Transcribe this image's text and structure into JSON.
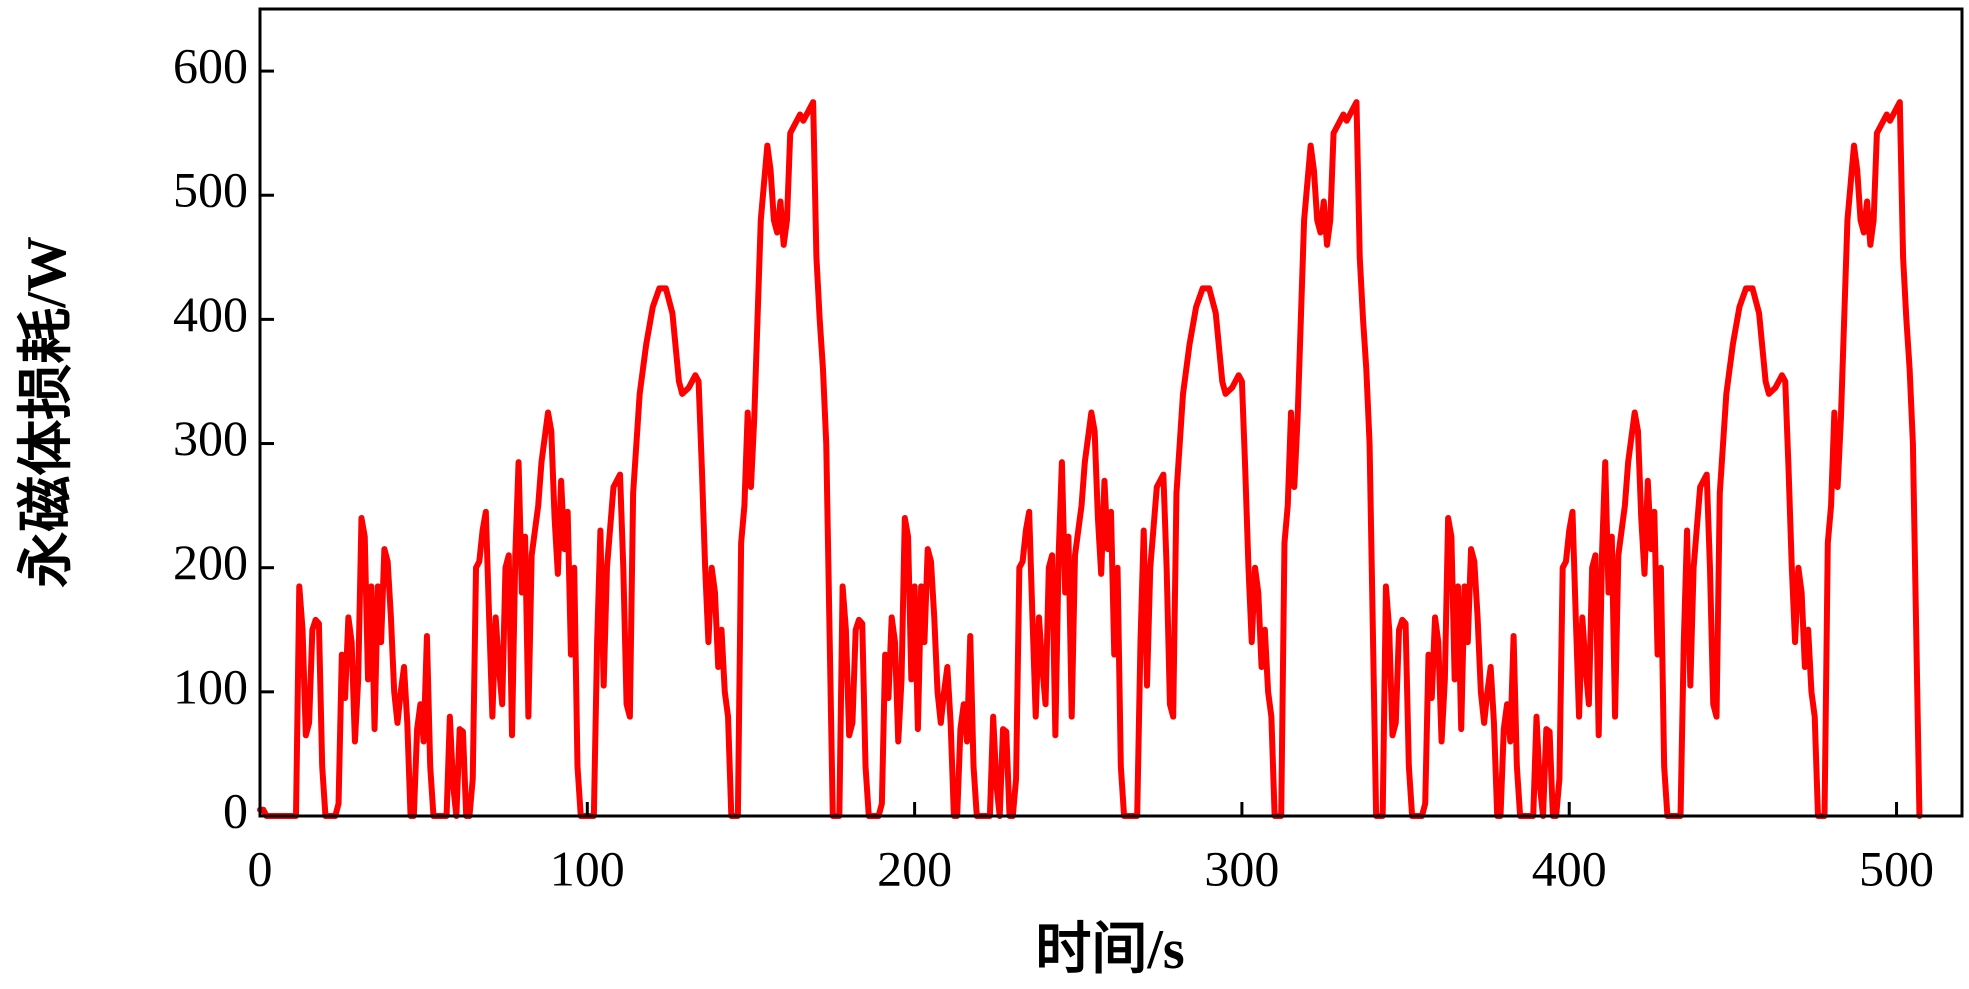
{
  "chart_data": {
    "type": "line",
    "xlabel": "时间/s",
    "ylabel": "永磁体损耗/W",
    "xlim": [
      0,
      520
    ],
    "ylim": [
      0,
      650
    ],
    "xticks": [
      0,
      100,
      200,
      300,
      400,
      500
    ],
    "yticks": [
      0,
      100,
      200,
      300,
      400,
      500,
      600
    ],
    "color": "#ff0000",
    "x": [
      0,
      1,
      2,
      11,
      12,
      13,
      14,
      15,
      16,
      17,
      18,
      19,
      20,
      23,
      24,
      25,
      26,
      27,
      28,
      29,
      30,
      31,
      32,
      33,
      34,
      35,
      36,
      37,
      38,
      39,
      40,
      41,
      42,
      43,
      44,
      45,
      46,
      47,
      48,
      49,
      50,
      51,
      52,
      53,
      57,
      58,
      59,
      60,
      61,
      62,
      63,
      64,
      65,
      66,
      67,
      68,
      69,
      70,
      71,
      72,
      73,
      74,
      75,
      76,
      77,
      78,
      79,
      80,
      81,
      82,
      83,
      85,
      86,
      88,
      89,
      90,
      91,
      92,
      93,
      94,
      95,
      96,
      97,
      98,
      102,
      103,
      104,
      105,
      106,
      108,
      110,
      111,
      112,
      113,
      114,
      116,
      118,
      120,
      122,
      124,
      126,
      128,
      129,
      131,
      133,
      134,
      135,
      136,
      137,
      138,
      139,
      140,
      141,
      142,
      143,
      144,
      146,
      147,
      148,
      149,
      150,
      151,
      152,
      153,
      155,
      156,
      157,
      158,
      159,
      160,
      161,
      162,
      163,
      165,
      166,
      168,
      169,
      170,
      171,
      172,
      173,
      174,
      175,
      177,
      178,
      179,
      180,
      181,
      182,
      183,
      184,
      185,
      186,
      189,
      190,
      191,
      192,
      193,
      194,
      195,
      196,
      197,
      198,
      199,
      200,
      201,
      202,
      203,
      204,
      205,
      206,
      207,
      208,
      209,
      210,
      211,
      212,
      213,
      214,
      215,
      216,
      217,
      218,
      219,
      223,
      224,
      225,
      226,
      227,
      228,
      229,
      230,
      231,
      232,
      233,
      234,
      235,
      236,
      237,
      238,
      239,
      240,
      241,
      242,
      243,
      244,
      245,
      246,
      247,
      248,
      249,
      251,
      252,
      254,
      255,
      256,
      257,
      258,
      259,
      260,
      261,
      262,
      263,
      264,
      268,
      269,
      270,
      271,
      272,
      274,
      276,
      277,
      278,
      279,
      280,
      282,
      284,
      286,
      288,
      290,
      292,
      294,
      295,
      297,
      299,
      300,
      301,
      302,
      303,
      304,
      305,
      306,
      307,
      308,
      309,
      310,
      312,
      313,
      314,
      315,
      316,
      317,
      318,
      319,
      321,
      322,
      323,
      324,
      325,
      326,
      327,
      328,
      329,
      331,
      332,
      334,
      335,
      336,
      337,
      338,
      339,
      340,
      341,
      343,
      344,
      345,
      346,
      347,
      348,
      349,
      350,
      351,
      352,
      355,
      356,
      357,
      358,
      359,
      360,
      361,
      362,
      363,
      364,
      365,
      366,
      367,
      368,
      369,
      370,
      371,
      372,
      373,
      374,
      375,
      376,
      377,
      378,
      379,
      380,
      381,
      382,
      383,
      384,
      385,
      389,
      390,
      391,
      392,
      393,
      394,
      395,
      396,
      397,
      398,
      399,
      400,
      401,
      402,
      403,
      404,
      405,
      406,
      407,
      408,
      409,
      410,
      411,
      412,
      413,
      414,
      415,
      417,
      418,
      420,
      421,
      422,
      423,
      424,
      425,
      426,
      427,
      428,
      429,
      430,
      434,
      435,
      436,
      437,
      438,
      440,
      442,
      443,
      444,
      445,
      446,
      448,
      450,
      452,
      454,
      456,
      458,
      460,
      461,
      463,
      465,
      466,
      467,
      468,
      469,
      470,
      471,
      472,
      473,
      474,
      475,
      476,
      478,
      479,
      480,
      481,
      482,
      483,
      484,
      485,
      487,
      488,
      489,
      490,
      491,
      492,
      493,
      494,
      495,
      497,
      498,
      500,
      501,
      502,
      503,
      504,
      505,
      506,
      507
    ],
    "values": [
      5,
      5,
      0,
      0,
      185,
      150,
      65,
      75,
      150,
      158,
      155,
      40,
      0,
      0,
      10,
      130,
      95,
      160,
      140,
      60,
      110,
      240,
      225,
      110,
      185,
      70,
      185,
      140,
      215,
      205,
      160,
      100,
      75,
      100,
      120,
      75,
      0,
      0,
      70,
      90,
      60,
      145,
      40,
      0,
      0,
      80,
      25,
      0,
      70,
      68,
      0,
      0,
      30,
      200,
      205,
      230,
      245,
      160,
      80,
      160,
      120,
      90,
      200,
      210,
      65,
      210,
      285,
      180,
      225,
      80,
      210,
      250,
      285,
      325,
      310,
      240,
      195,
      270,
      215,
      245,
      130,
      200,
      40,
      0,
      0,
      140,
      230,
      105,
      200,
      265,
      275,
      200,
      90,
      80,
      260,
      340,
      380,
      410,
      425,
      425,
      405,
      350,
      340,
      345,
      355,
      350,
      280,
      200,
      140,
      200,
      180,
      120,
      150,
      100,
      80,
      0,
      0,
      220,
      250,
      325,
      265,
      320,
      400,
      480,
      540,
      520,
      480,
      470,
      495,
      460,
      480,
      550,
      555,
      565,
      560,
      570,
      575,
      450,
      400,
      360,
      300,
      150,
      0,
      0,
      185,
      150,
      65,
      75,
      150,
      158,
      155,
      40,
      0,
      0,
      10,
      130,
      95,
      160,
      140,
      60,
      110,
      240,
      225,
      110,
      185,
      70,
      185,
      140,
      215,
      205,
      160,
      100,
      75,
      100,
      120,
      75,
      0,
      0,
      70,
      90,
      60,
      145,
      40,
      0,
      0,
      80,
      25,
      0,
      70,
      68,
      0,
      0,
      30,
      200,
      205,
      230,
      245,
      160,
      80,
      160,
      120,
      90,
      200,
      210,
      65,
      210,
      285,
      180,
      225,
      80,
      210,
      250,
      285,
      325,
      310,
      240,
      195,
      270,
      215,
      245,
      130,
      200,
      40,
      0,
      0,
      140,
      230,
      105,
      200,
      265,
      275,
      200,
      90,
      80,
      260,
      340,
      380,
      410,
      425,
      425,
      405,
      350,
      340,
      345,
      355,
      350,
      280,
      200,
      140,
      200,
      180,
      120,
      150,
      100,
      80,
      0,
      0,
      220,
      250,
      325,
      265,
      320,
      400,
      480,
      540,
      520,
      480,
      470,
      495,
      460,
      480,
      550,
      555,
      565,
      560,
      570,
      575,
      450,
      400,
      360,
      300,
      150,
      0,
      0,
      185,
      150,
      65,
      75,
      150,
      158,
      155,
      40,
      0,
      0,
      10,
      130,
      95,
      160,
      140,
      60,
      110,
      240,
      225,
      110,
      185,
      70,
      185,
      140,
      215,
      205,
      160,
      100,
      75,
      100,
      120,
      75,
      0,
      0,
      70,
      90,
      60,
      145,
      40,
      0,
      0,
      80,
      25,
      0,
      70,
      68,
      0,
      0,
      30,
      200,
      205,
      230,
      245,
      160,
      80,
      160,
      120,
      90,
      200,
      210,
      65,
      210,
      285,
      180,
      225,
      80,
      210,
      250,
      285,
      325,
      310,
      240,
      195,
      270,
      215,
      245,
      130,
      200,
      40,
      0,
      0,
      140,
      230,
      105,
      200,
      265,
      275,
      200,
      90,
      80,
      260,
      340,
      380,
      410,
      425,
      425,
      405,
      350,
      340,
      345,
      355,
      350,
      280,
      200,
      140,
      200,
      180,
      120,
      150,
      100,
      80,
      0,
      0,
      220,
      250,
      325,
      265,
      320,
      400,
      480,
      540,
      520,
      480,
      470,
      495,
      460,
      480,
      550,
      555,
      565,
      560,
      570,
      575,
      450,
      400,
      360,
      300,
      150,
      0
    ]
  }
}
